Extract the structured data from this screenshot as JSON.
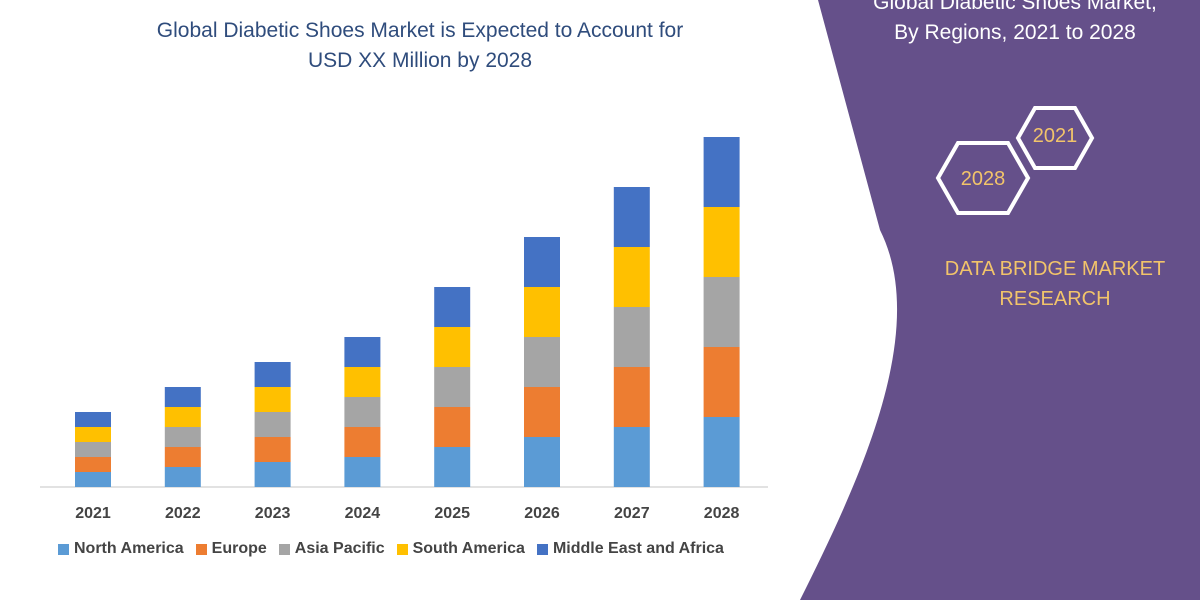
{
  "title_line1": "Global Diabetic Shoes Market is Expected to Account for",
  "title_line2": "USD XX Million by 2028",
  "panel": {
    "title_line1": "Global Diabetic Shoes Market,",
    "title_line2": "By Regions, 2021 to 2028",
    "hex_a": "2021",
    "hex_b": "2028",
    "brand_line1": "DATA BRIDGE MARKET",
    "brand_line2": "RESEARCH",
    "color": "#65508a",
    "accent": "#f2c46a"
  },
  "chart_data": {
    "type": "bar",
    "stacked": true,
    "categories": [
      "2021",
      "2022",
      "2023",
      "2024",
      "2025",
      "2026",
      "2027",
      "2028"
    ],
    "series": [
      {
        "name": "North America",
        "color": "#5b9bd5",
        "values": [
          15,
          20,
          25,
          30,
          40,
          50,
          60,
          70
        ]
      },
      {
        "name": "Europe",
        "color": "#ed7d31",
        "values": [
          15,
          20,
          25,
          30,
          40,
          50,
          60,
          70
        ]
      },
      {
        "name": "Asia Pacific",
        "color": "#a5a5a5",
        "values": [
          15,
          20,
          25,
          30,
          40,
          50,
          60,
          70
        ]
      },
      {
        "name": "South America",
        "color": "#ffc000",
        "values": [
          15,
          20,
          25,
          30,
          40,
          50,
          60,
          70
        ]
      },
      {
        "name": "Middle East and Africa",
        "color": "#4472c4",
        "values": [
          15,
          20,
          25,
          30,
          40,
          50,
          60,
          70
        ]
      }
    ],
    "ylim": [
      0,
      360
    ],
    "grid": false,
    "legend": "bottom",
    "y_axis_shown": false
  }
}
